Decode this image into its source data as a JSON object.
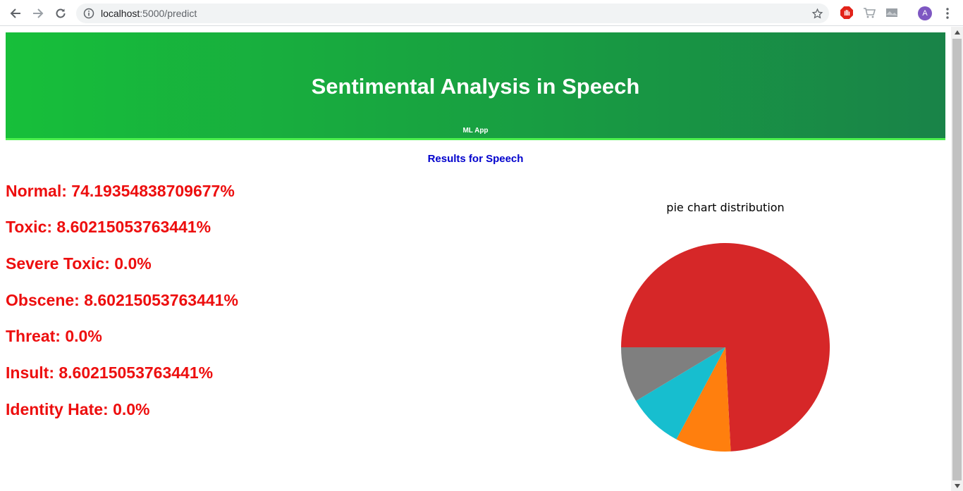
{
  "browser": {
    "url_host": "localhost",
    "url_path": ":5000/predict",
    "avatar_letter": "A"
  },
  "header": {
    "title": "Sentimental Analysis in Speech",
    "subtitle": "ML App",
    "colors": {
      "gradient_start": "#17bf3a",
      "gradient_end": "#198348",
      "border": "#4cf04c"
    }
  },
  "results": {
    "title": "Results for Speech",
    "items": [
      {
        "label": "Normal: 74.19354838709677%"
      },
      {
        "label": "Toxic: 8.60215053763441%"
      },
      {
        "label": "Severe Toxic: 0.0%"
      },
      {
        "label": "Obscene: 8.60215053763441%"
      },
      {
        "label": "Threat: 0.0%"
      },
      {
        "label": "Insult: 8.60215053763441%"
      },
      {
        "label": "Identity Hate: 0.0%"
      }
    ],
    "text_color": "#ed0e0e"
  },
  "chart_data": {
    "type": "pie",
    "title": "pie chart distribution",
    "categories": [
      "Normal",
      "Toxic",
      "Severe Toxic",
      "Obscene",
      "Threat",
      "Insult",
      "Identity Hate"
    ],
    "values": [
      74.19354838709677,
      8.60215053763441,
      0.0,
      8.60215053763441,
      0.0,
      8.60215053763441,
      0.0
    ],
    "colors": [
      "#d62728",
      "#ff7f0e",
      "#2ca02c",
      "#17becf",
      "#9467bd",
      "#7f7f7f",
      "#8c564b"
    ],
    "direction": "clockwise",
    "start_angle_deg": 180,
    "legend": "none"
  }
}
